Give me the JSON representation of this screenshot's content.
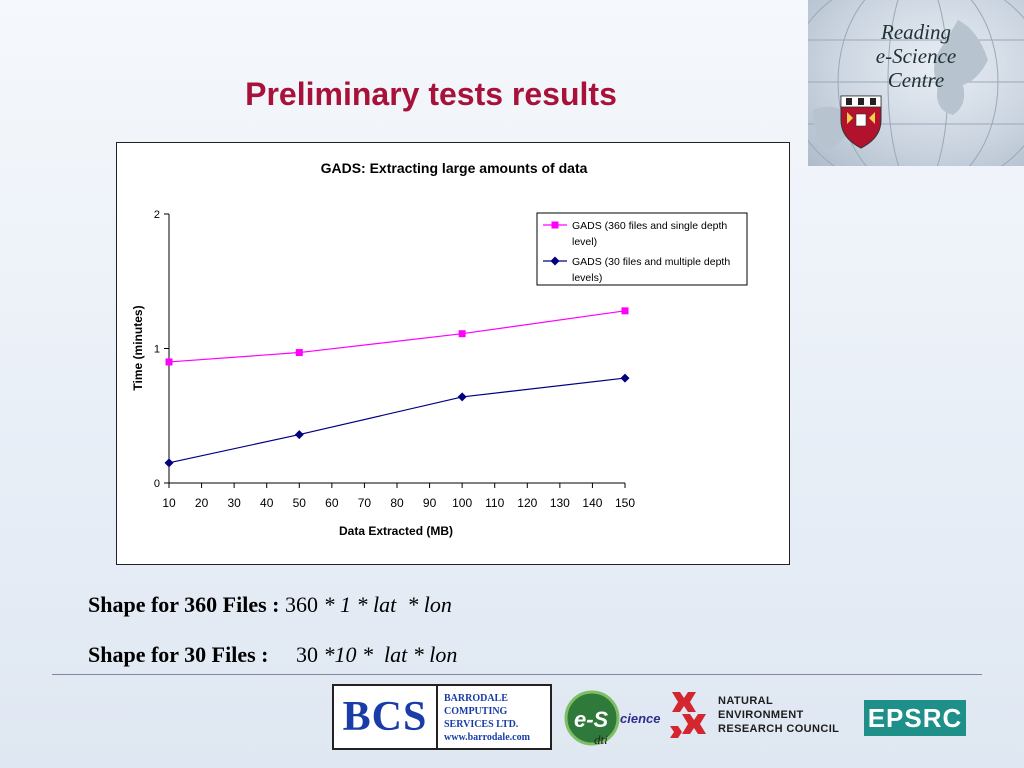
{
  "header": {
    "logo_text": [
      "Reading",
      "e-Science",
      "Centre"
    ],
    "title": "Preliminary tests results"
  },
  "chart_data": {
    "type": "line",
    "title": "GADS: Extracting large amounts of data",
    "xlabel": "Data Extracted (MB)",
    "ylabel": "Time (minutes)",
    "x_ticks": [
      10,
      20,
      30,
      40,
      50,
      60,
      70,
      80,
      90,
      100,
      110,
      120,
      130,
      140,
      150
    ],
    "y_ticks": [
      0,
      1,
      2
    ],
    "xlim": [
      10,
      150
    ],
    "ylim": [
      0,
      2
    ],
    "grid": false,
    "legend_position": "top-right",
    "series": [
      {
        "name": "GADS (360 files and single depth level)",
        "legend_lines": [
          "GADS (360 files and single depth",
          "level)"
        ],
        "color": "#ff00ff",
        "marker": "square",
        "x": [
          10,
          50,
          100,
          150
        ],
        "y": [
          0.9,
          0.97,
          1.11,
          1.28
        ]
      },
      {
        "name": "GADS (30 files and multiple depth levels)",
        "legend_lines": [
          "GADS (30 files and multiple depth",
          "levels)"
        ],
        "color": "#00007f",
        "marker": "diamond",
        "x": [
          10,
          50,
          100,
          150
        ],
        "y": [
          0.15,
          0.36,
          0.64,
          0.78
        ]
      }
    ]
  },
  "shapes": {
    "line1": {
      "label": "Shape for 360 Files :",
      "value": "360",
      "rest": "* 1 * lat  * lon"
    },
    "line2": {
      "label": "Shape for 30 Files :",
      "value": "30",
      "rest": "*10 *  lat * lon"
    }
  },
  "footer": {
    "bcs_letters": "BCS",
    "bcs_lines": [
      "BARRODALE",
      "COMPUTING",
      "SERVICES LTD.",
      "www.barrodale.com"
    ],
    "escience_main": "e-S",
    "escience_sub": "cience",
    "escience_dti": "dti",
    "nerc_lines": [
      "NATURAL",
      "ENVIRONMENT",
      "RESEARCH COUNCIL"
    ],
    "epsrc": "EPSRC"
  }
}
